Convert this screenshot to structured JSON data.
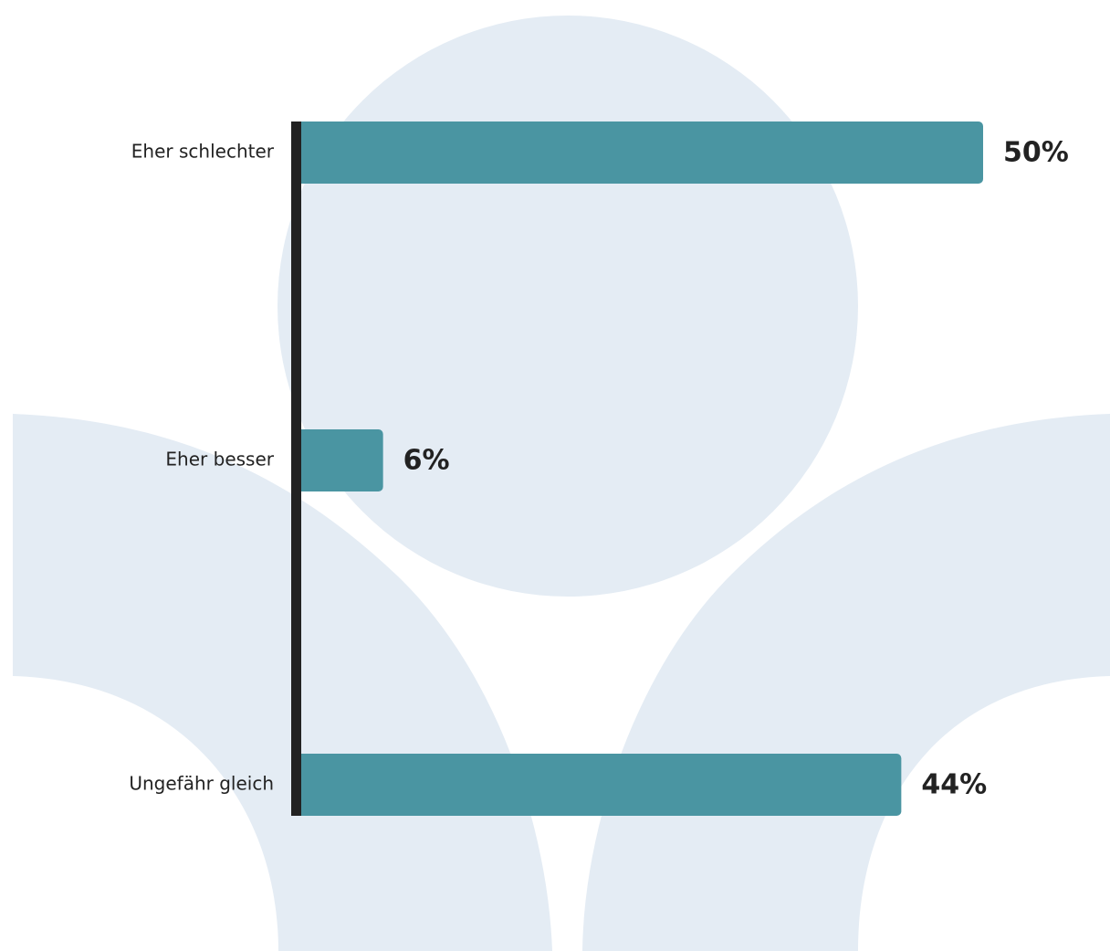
{
  "chart_data": {
    "type": "bar",
    "orientation": "horizontal",
    "categories": [
      "Eher schlechter",
      "Eher besser",
      "Ungefähr gleich"
    ],
    "values": [
      50,
      6,
      44
    ],
    "value_labels": [
      "50%",
      "6%",
      "44%"
    ],
    "color": "#4a95a2"
  }
}
